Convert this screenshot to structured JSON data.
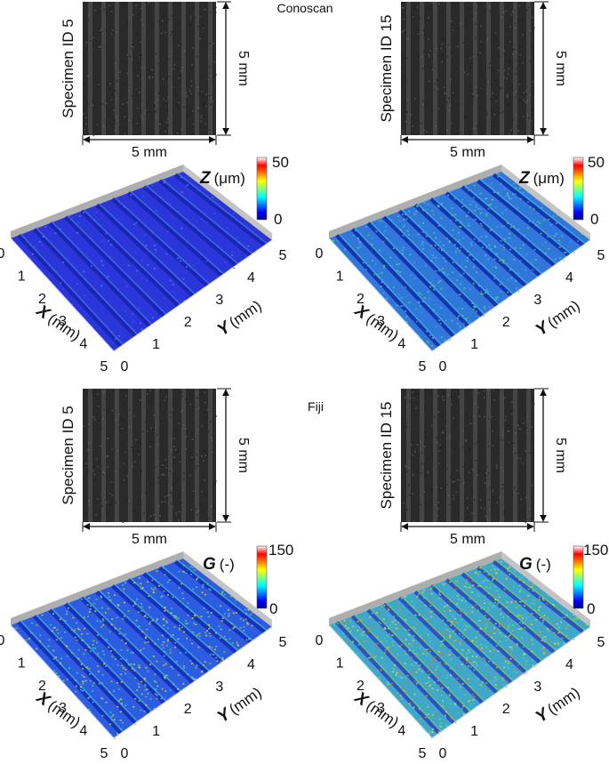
{
  "sections": [
    {
      "title": "Conoscan",
      "colorbar": {
        "symbol": "Z",
        "unit": "(μm)",
        "max": "50",
        "min": "0",
        "max_value": 50,
        "min_value": 0
      },
      "specimens": [
        {
          "label": "Specimen ID 5",
          "base": "#2a36d8",
          "stripe": "#1a22b0",
          "noise": [
            "#4a8ae6",
            "#3a5fe0"
          ],
          "noise_amount": 0.08
        },
        {
          "label": "Specimen ID 15",
          "base": "#2f78d9",
          "stripe": "#1428a8",
          "noise": [
            "#49c8d6",
            "#6fd06a",
            "#4aa0e8"
          ],
          "noise_amount": 0.3
        }
      ]
    },
    {
      "title": "Fiji",
      "colorbar": {
        "symbol": "G",
        "unit": "(-)",
        "max": "150",
        "min": "0",
        "max_value": 150,
        "min_value": 0
      },
      "specimens": [
        {
          "label": "Specimen ID 5",
          "base": "#2c5de0",
          "stripe": "#1828b8",
          "noise": [
            "#44d4c8",
            "#8ad34a",
            "#e8d640"
          ],
          "noise_amount": 0.35
        },
        {
          "label": "Specimen ID 15",
          "base": "#3fa8c8",
          "stripe": "#2a44c8",
          "noise": [
            "#8ad34a",
            "#e8d640",
            "#e06a30",
            "#44d4c8"
          ],
          "noise_amount": 0.55
        }
      ]
    }
  ],
  "dims": {
    "width_label": "5 mm",
    "height_label": "5 mm"
  },
  "axes": {
    "x_symbol": "X",
    "y_symbol": "Y",
    "unit": "(mm)",
    "x_ticks": [
      "0",
      "1",
      "2",
      "3",
      "4",
      "5"
    ],
    "y_ticks": [
      "0",
      "1",
      "2",
      "3",
      "4",
      "5"
    ]
  },
  "colors": {
    "photo_bg": "#2a2a2a",
    "photo_stripe": "#4a4a4a",
    "wall": "#9a9a9a"
  }
}
